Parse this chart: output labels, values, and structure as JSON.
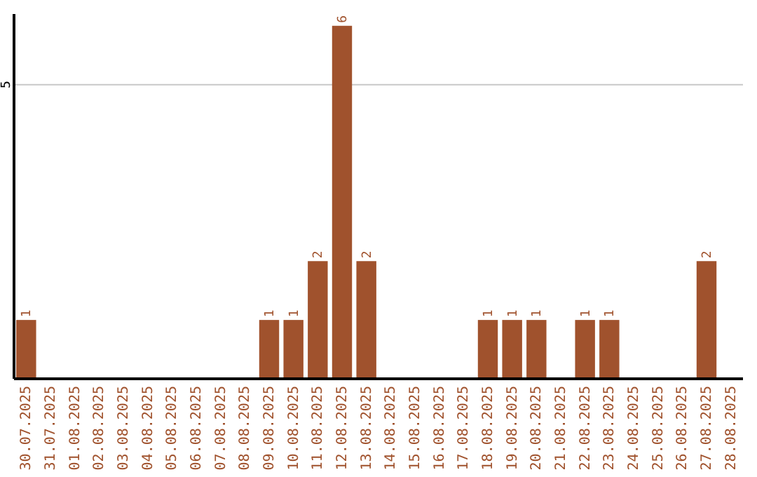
{
  "chart_data": {
    "type": "bar",
    "categories": [
      "30.07.2025",
      "31.07.2025",
      "01.08.2025",
      "02.08.2025",
      "03.08.2025",
      "04.08.2025",
      "05.08.2025",
      "06.08.2025",
      "07.08.2025",
      "08.08.2025",
      "09.08.2025",
      "10.08.2025",
      "11.08.2025",
      "12.08.2025",
      "13.08.2025",
      "14.08.2025",
      "15.08.2025",
      "16.08.2025",
      "17.08.2025",
      "18.08.2025",
      "19.08.2025",
      "20.08.2025",
      "21.08.2025",
      "22.08.2025",
      "23.08.2025",
      "24.08.2025",
      "25.08.2025",
      "26.08.2025",
      "27.08.2025",
      "28.08.2025"
    ],
    "values": [
      1,
      0,
      0,
      0,
      0,
      0,
      0,
      0,
      0,
      0,
      1,
      1,
      2,
      6,
      2,
      0,
      0,
      0,
      0,
      1,
      1,
      1,
      0,
      1,
      1,
      0,
      0,
      0,
      2,
      0
    ],
    "value_labels": [
      "1",
      null,
      null,
      null,
      null,
      null,
      null,
      null,
      null,
      null,
      "1",
      "1",
      "2",
      "6",
      "2",
      null,
      null,
      null,
      null,
      "1",
      "1",
      "1",
      null,
      "1",
      "1",
      null,
      null,
      null,
      "2",
      null
    ],
    "color": "#a0522d",
    "ylim": [
      0,
      6.2
    ],
    "yticks": [
      5
    ],
    "grid": "y"
  }
}
